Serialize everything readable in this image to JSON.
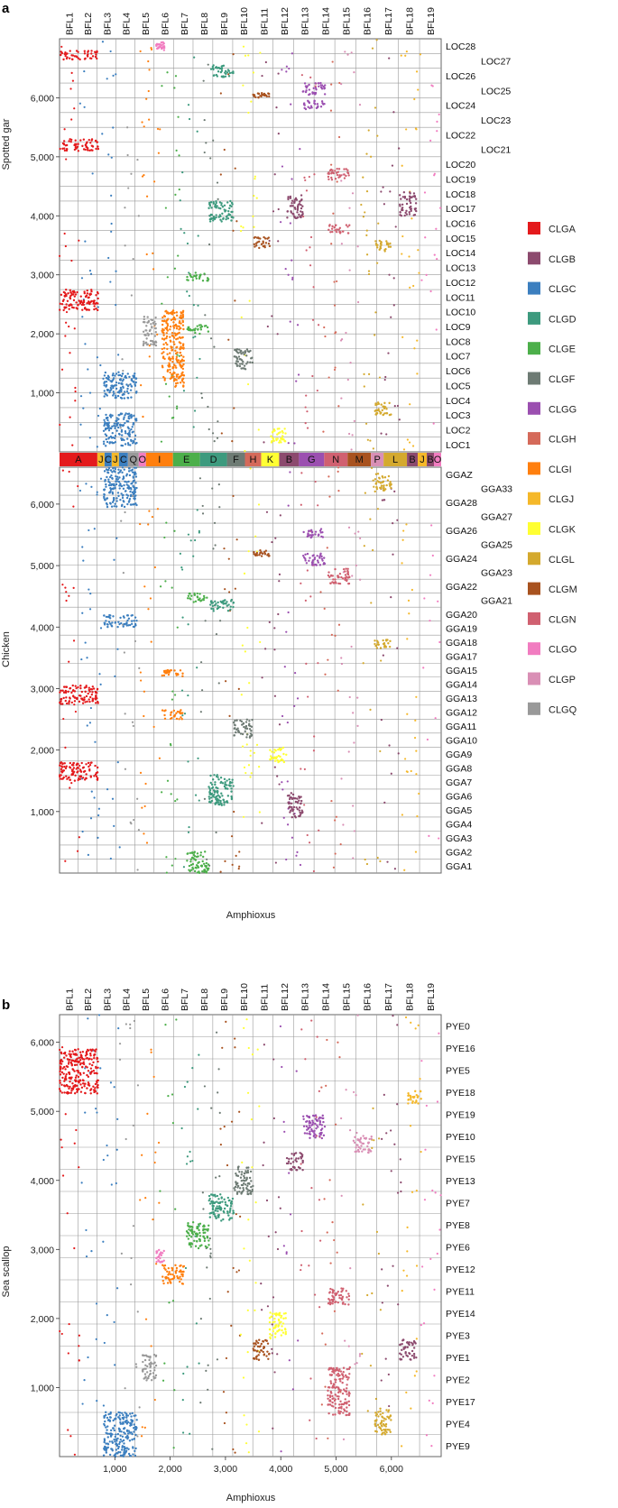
{
  "legend": {
    "items": [
      {
        "name": "CLGA",
        "color": "#e41a1c"
      },
      {
        "name": "CLGB",
        "color": "#8c4a6e"
      },
      {
        "name": "CLGC",
        "color": "#3c7fbf"
      },
      {
        "name": "CLGD",
        "color": "#3d9a7e"
      },
      {
        "name": "CLGE",
        "color": "#4caf4a"
      },
      {
        "name": "CLGF",
        "color": "#6e7b74"
      },
      {
        "name": "CLGG",
        "color": "#9b4fb0"
      },
      {
        "name": "CLGH",
        "color": "#d56a5a"
      },
      {
        "name": "CLGI",
        "color": "#ff7f0e"
      },
      {
        "name": "CLGJ",
        "color": "#f5b829"
      },
      {
        "name": "CLGK",
        "color": "#ffff33"
      },
      {
        "name": "CLGL",
        "color": "#d4a92e"
      },
      {
        "name": "CLGM",
        "color": "#a8521f"
      },
      {
        "name": "CLGN",
        "color": "#d06070"
      },
      {
        "name": "CLGO",
        "color": "#f17cc0"
      },
      {
        "name": "CLGP",
        "color": "#d98fb5"
      },
      {
        "name": "CLGQ",
        "color": "#999999"
      }
    ]
  },
  "chart_data": [
    {
      "type": "scatter",
      "panel_label": "a",
      "xlabel": "Amphioxus",
      "ylabel": "Spotted gar",
      "xlim": [
        0,
        6900
      ],
      "ylim": [
        0,
        7000
      ],
      "x_ticks": [
        "1,000",
        "2,000",
        "3,000",
        "4,000",
        "5,000",
        "6,000"
      ],
      "y_ticks": [
        "1,000",
        "2,000",
        "3,000",
        "4,000",
        "5,000",
        "6,000"
      ],
      "top_labels": [
        "BFL1",
        "BFL2",
        "BFL3",
        "BFL4",
        "BFL5",
        "BFL6",
        "BFL7",
        "BFL8",
        "BFL9",
        "BFL10",
        "BFL11",
        "BFL12",
        "BFL13",
        "BFL14",
        "BFL15",
        "BFL16",
        "BFL17",
        "BFL18",
        "BFL19"
      ],
      "right_labels": [
        "LOC28",
        "LOC27",
        "LOC26",
        "LOC25",
        "LOC24",
        "LOC23",
        "LOC22",
        "LOC21",
        "LOC20",
        "LOC19",
        "LOC18",
        "LOC17",
        "LOC16",
        "LOC15",
        "LOC14",
        "LOC13",
        "LOC12",
        "LOC11",
        "LOC10",
        "LOC9",
        "LOC8",
        "LOC7",
        "LOC6",
        "LOC5",
        "LOC4",
        "LOC3",
        "LOC2",
        "LOC1"
      ],
      "blocks": [
        {
          "clg": "CLGA",
          "x": [
            0,
            700
          ],
          "y": [
            5100,
            5300
          ]
        },
        {
          "clg": "CLGA",
          "x": [
            0,
            700
          ],
          "y": [
            2400,
            2750
          ]
        },
        {
          "clg": "CLGA",
          "x": [
            0,
            700
          ],
          "y": [
            6650,
            6800
          ]
        },
        {
          "clg": "CLGC",
          "x": [
            800,
            1400
          ],
          "y": [
            900,
            1350
          ]
        },
        {
          "clg": "CLGC",
          "x": [
            800,
            1400
          ],
          "y": [
            100,
            650
          ]
        },
        {
          "clg": "CLGQ",
          "x": [
            1500,
            1750
          ],
          "y": [
            1800,
            2300
          ]
        },
        {
          "clg": "CLGI",
          "x": [
            1850,
            2250
          ],
          "y": [
            1100,
            2400
          ]
        },
        {
          "clg": "CLGE",
          "x": [
            2300,
            2700
          ],
          "y": [
            2900,
            3050
          ]
        },
        {
          "clg": "CLGE",
          "x": [
            2300,
            2700
          ],
          "y": [
            2000,
            2150
          ]
        },
        {
          "clg": "CLGD",
          "x": [
            2700,
            3150
          ],
          "y": [
            6350,
            6550
          ]
        },
        {
          "clg": "CLGD",
          "x": [
            2700,
            3150
          ],
          "y": [
            3900,
            4250
          ]
        },
        {
          "clg": "CLGF",
          "x": [
            3150,
            3500
          ],
          "y": [
            1400,
            1750
          ]
        },
        {
          "clg": "CLGM",
          "x": [
            3500,
            3800
          ],
          "y": [
            3450,
            3650
          ]
        },
        {
          "clg": "CLGM",
          "x": [
            3500,
            3800
          ],
          "y": [
            6000,
            6080
          ]
        },
        {
          "clg": "CLGK",
          "x": [
            3800,
            4100
          ],
          "y": [
            150,
            400
          ]
        },
        {
          "clg": "CLGG",
          "x": [
            4400,
            4800
          ],
          "y": [
            6050,
            6250
          ]
        },
        {
          "clg": "CLGG",
          "x": [
            4400,
            4800
          ],
          "y": [
            5800,
            5950
          ]
        },
        {
          "clg": "CLGB",
          "x": [
            4100,
            4400
          ],
          "y": [
            3950,
            4350
          ]
        },
        {
          "clg": "CLGN",
          "x": [
            4850,
            5250
          ],
          "y": [
            4600,
            4800
          ]
        },
        {
          "clg": "CLGN",
          "x": [
            4850,
            5250
          ],
          "y": [
            3700,
            3850
          ]
        },
        {
          "clg": "CLGL",
          "x": [
            5700,
            6000
          ],
          "y": [
            3400,
            3600
          ]
        },
        {
          "clg": "CLGL",
          "x": [
            5700,
            6000
          ],
          "y": [
            600,
            850
          ]
        },
        {
          "clg": "CLGB",
          "x": [
            6150,
            6450
          ],
          "y": [
            4000,
            4400
          ]
        },
        {
          "clg": "CLGO",
          "x": [
            1750,
            1900
          ],
          "y": [
            6800,
            6950
          ]
        }
      ],
      "band": [
        "A",
        "J",
        "C",
        "J",
        "C",
        "Q",
        "O",
        "I",
        "E",
        "D",
        "F",
        "H",
        "K",
        "B",
        "G",
        "N",
        "M",
        "P",
        "L",
        "B",
        "J",
        "B",
        "O"
      ]
    },
    {
      "type": "scatter",
      "xlabel": "",
      "ylabel": "Chicken",
      "xlim": [
        0,
        6900
      ],
      "ylim": [
        0,
        6600
      ],
      "y_ticks": [
        "1,000",
        "2,000",
        "3,000",
        "4,000",
        "5,000",
        "6,000"
      ],
      "right_labels": [
        "GGAZ",
        "GGA33",
        "GGA28",
        "GGA27",
        "GGA26",
        "GGA25",
        "GGA24",
        "GGA23",
        "GGA22",
        "GGA21",
        "GGA20",
        "GGA19",
        "GGA18",
        "GGA17",
        "GGA15",
        "GGA14",
        "GGA13",
        "GGA12",
        "GGA11",
        "GGA10",
        "GGA9",
        "GGA8",
        "GGA7",
        "GGA6",
        "GGA5",
        "GGA4",
        "GGA3",
        "GGA2",
        "GGA1"
      ],
      "blocks": [
        {
          "clg": "CLGA",
          "x": [
            0,
            700
          ],
          "y": [
            2750,
            3050
          ]
        },
        {
          "clg": "CLGA",
          "x": [
            0,
            700
          ],
          "y": [
            1500,
            1800
          ]
        },
        {
          "clg": "CLGC",
          "x": [
            800,
            1400
          ],
          "y": [
            5950,
            6600
          ]
        },
        {
          "clg": "CLGC",
          "x": [
            800,
            1400
          ],
          "y": [
            4000,
            4200
          ]
        },
        {
          "clg": "CLGI",
          "x": [
            1850,
            2250
          ],
          "y": [
            3200,
            3300
          ]
        },
        {
          "clg": "CLGI",
          "x": [
            1850,
            2250
          ],
          "y": [
            2500,
            2650
          ]
        },
        {
          "clg": "CLGE",
          "x": [
            2300,
            2700
          ],
          "y": [
            4400,
            4550
          ]
        },
        {
          "clg": "CLGE",
          "x": [
            2300,
            2700
          ],
          "y": [
            0,
            350
          ]
        },
        {
          "clg": "CLGD",
          "x": [
            2700,
            3150
          ],
          "y": [
            4250,
            4450
          ]
        },
        {
          "clg": "CLGD",
          "x": [
            2700,
            3150
          ],
          "y": [
            1100,
            1600
          ]
        },
        {
          "clg": "CLGF",
          "x": [
            3150,
            3500
          ],
          "y": [
            2200,
            2500
          ]
        },
        {
          "clg": "CLGM",
          "x": [
            3500,
            3800
          ],
          "y": [
            5150,
            5250
          ]
        },
        {
          "clg": "CLGK",
          "x": [
            3800,
            4100
          ],
          "y": [
            1800,
            2050
          ]
        },
        {
          "clg": "CLGG",
          "x": [
            4400,
            4800
          ],
          "y": [
            5450,
            5600
          ]
        },
        {
          "clg": "CLGG",
          "x": [
            4400,
            4800
          ],
          "y": [
            5000,
            5200
          ]
        },
        {
          "clg": "CLGN",
          "x": [
            4850,
            5250
          ],
          "y": [
            4700,
            4950
          ]
        },
        {
          "clg": "CLGL",
          "x": [
            5700,
            6000
          ],
          "y": [
            6200,
            6500
          ]
        },
        {
          "clg": "CLGL",
          "x": [
            5700,
            6000
          ],
          "y": [
            3650,
            3800
          ]
        },
        {
          "clg": "CLGB",
          "x": [
            4100,
            4400
          ],
          "y": [
            900,
            1300
          ]
        }
      ]
    },
    {
      "type": "scatter",
      "panel_label": "b",
      "xlabel": "Amphioxus",
      "ylabel": "Sea scallop",
      "xlim": [
        0,
        6900
      ],
      "ylim": [
        0,
        6400
      ],
      "x_ticks": [
        "1,000",
        "2,000",
        "3,000",
        "4,000",
        "5,000",
        "6,000"
      ],
      "y_ticks": [
        "1,000",
        "2,000",
        "3,000",
        "4,000",
        "5,000",
        "6,000"
      ],
      "top_labels": [
        "BFL1",
        "BFL2",
        "BFL3",
        "BFL4",
        "BFL5",
        "BFL6",
        "BFL7",
        "BFL8",
        "BFL9",
        "BFL10",
        "BFL11",
        "BFL12",
        "BFL13",
        "BFL14",
        "BFL15",
        "BFL16",
        "BFL17",
        "BFL18",
        "BFL19"
      ],
      "right_labels": [
        "PYE0",
        "PYE16",
        "PYE5",
        "PYE18",
        "PYE19",
        "PYE10",
        "PYE15",
        "PYE13",
        "PYE7",
        "PYE8",
        "PYE6",
        "PYE12",
        "PYE11",
        "PYE14",
        "PYE3",
        "PYE1",
        "PYE2",
        "PYE17",
        "PYE4",
        "PYE9"
      ],
      "blocks": [
        {
          "clg": "CLGA",
          "x": [
            0,
            700
          ],
          "y": [
            5250,
            5900
          ]
        },
        {
          "clg": "CLGC",
          "x": [
            800,
            1400
          ],
          "y": [
            0,
            650
          ]
        },
        {
          "clg": "CLGQ",
          "x": [
            1500,
            1750
          ],
          "y": [
            1100,
            1500
          ]
        },
        {
          "clg": "CLGI",
          "x": [
            1850,
            2250
          ],
          "y": [
            2500,
            2800
          ]
        },
        {
          "clg": "CLGO",
          "x": [
            1750,
            1900
          ],
          "y": [
            2800,
            3000
          ]
        },
        {
          "clg": "CLGE",
          "x": [
            2300,
            2700
          ],
          "y": [
            3000,
            3400
          ]
        },
        {
          "clg": "CLGD",
          "x": [
            2700,
            3150
          ],
          "y": [
            3400,
            3800
          ]
        },
        {
          "clg": "CLGF",
          "x": [
            3150,
            3500
          ],
          "y": [
            3800,
            4200
          ]
        },
        {
          "clg": "CLGM",
          "x": [
            3500,
            3800
          ],
          "y": [
            1400,
            1700
          ]
        },
        {
          "clg": "CLGK",
          "x": [
            3800,
            4100
          ],
          "y": [
            1700,
            2100
          ]
        },
        {
          "clg": "CLGB",
          "x": [
            4100,
            4400
          ],
          "y": [
            4150,
            4400
          ]
        },
        {
          "clg": "CLGG",
          "x": [
            4400,
            4800
          ],
          "y": [
            4600,
            4950
          ]
        },
        {
          "clg": "CLGN",
          "x": [
            4850,
            5250
          ],
          "y": [
            2200,
            2450
          ]
        },
        {
          "clg": "CLGN",
          "x": [
            4850,
            5250
          ],
          "y": [
            600,
            1300
          ]
        },
        {
          "clg": "CLGP",
          "x": [
            5300,
            5650
          ],
          "y": [
            4400,
            4650
          ]
        },
        {
          "clg": "CLGL",
          "x": [
            5700,
            6000
          ],
          "y": [
            300,
            700
          ]
        },
        {
          "clg": "CLGJ",
          "x": [
            6300,
            6550
          ],
          "y": [
            5100,
            5300
          ]
        },
        {
          "clg": "CLGB",
          "x": [
            6150,
            6450
          ],
          "y": [
            1400,
            1700
          ]
        }
      ]
    }
  ]
}
